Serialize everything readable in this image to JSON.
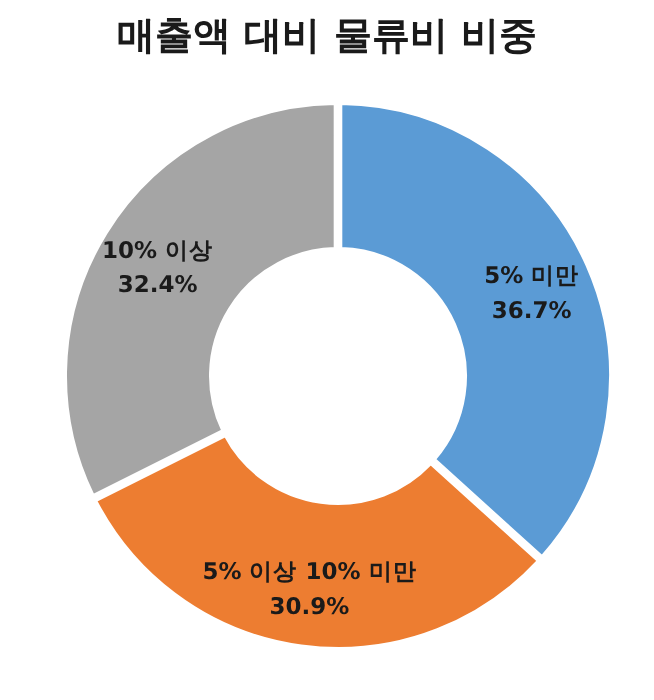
{
  "chart_data": {
    "type": "donut",
    "title": "매출액 대비 물류비 비중",
    "categories": [
      "5% 미만",
      "5% 이상 10% 미만",
      "10% 이상"
    ],
    "values": [
      36.7,
      30.9,
      32.4
    ],
    "colors": [
      "#5b9bd5",
      "#ed7d31",
      "#a5a5a5"
    ],
    "value_labels": [
      "36.7%",
      "30.9%",
      "32.4%"
    ]
  }
}
